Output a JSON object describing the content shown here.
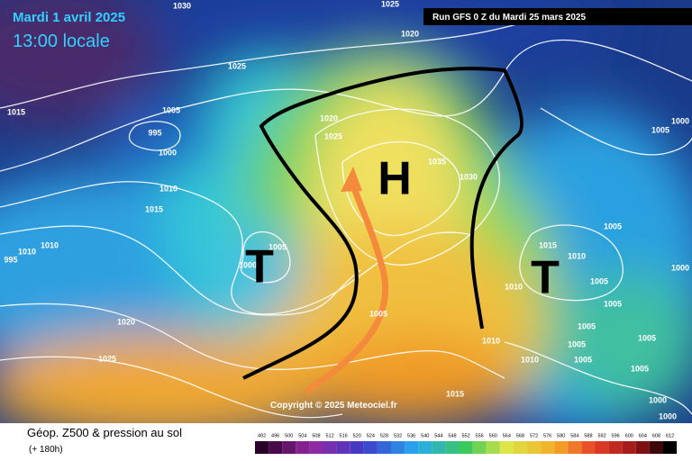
{
  "header": {
    "title": "Mardi 1 avril 2025",
    "subtitle": "13:00 locale",
    "run": "Run GFS 0 Z du Mardi 25 mars 2025"
  },
  "map": {
    "centers": [
      "H",
      "T",
      "T"
    ],
    "isobar_labels": [
      1030,
      1025,
      1020,
      1025,
      1015,
      1005,
      995,
      1000,
      1020,
      1025,
      1035,
      1030,
      1010,
      1015,
      1005,
      1000,
      1010,
      1010,
      995,
      1005,
      1015,
      1010,
      1005,
      1000,
      1010,
      1005,
      1020,
      1025,
      1005,
      1010,
      1005,
      1005,
      1005,
      1010,
      1005,
      1005,
      1015,
      1000,
      1000,
      1000,
      1005
    ],
    "copyright": "Copyright © 2025 Meteociel.fr"
  },
  "legend": {
    "title": "Géop. Z500 & pression au sol",
    "lead_time": "(+ 180h)",
    "scale": [
      492,
      496,
      500,
      504,
      508,
      512,
      516,
      520,
      524,
      528,
      532,
      536,
      540,
      544,
      548,
      552,
      556,
      560,
      564,
      568,
      572,
      576,
      580,
      584,
      588,
      592,
      596,
      600,
      604,
      608,
      612
    ]
  }
}
